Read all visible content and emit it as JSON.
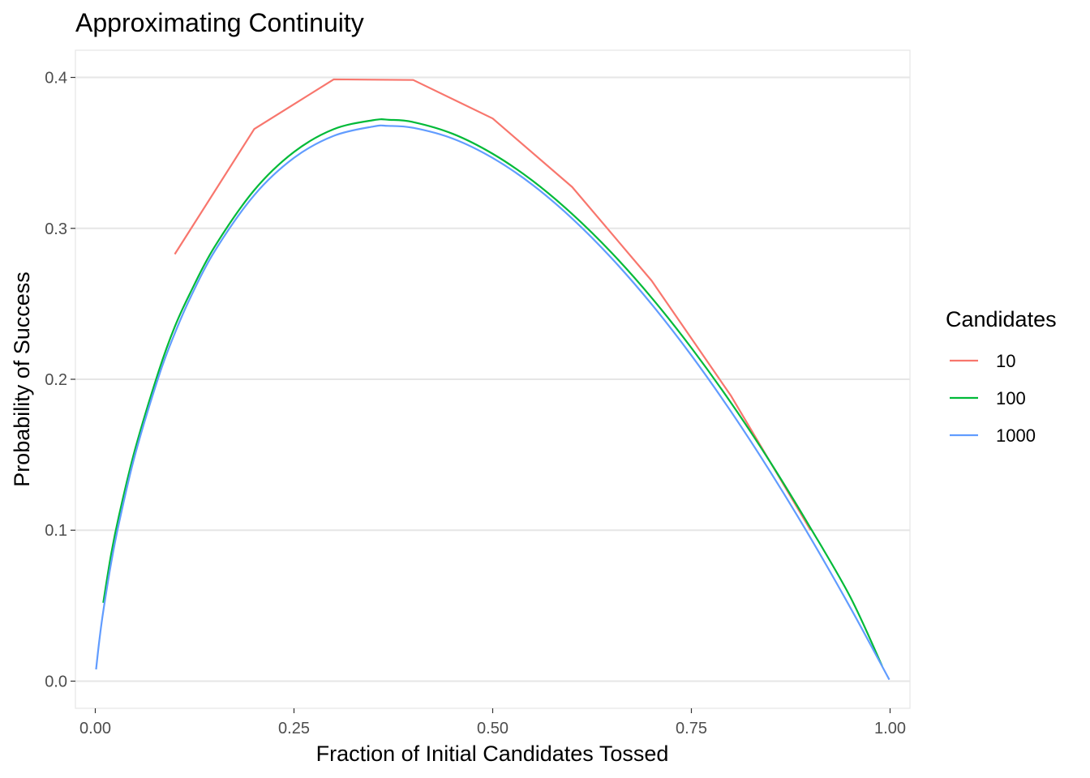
{
  "chart_data": {
    "type": "line",
    "title": "Approximating Continuity",
    "xlabel": "Fraction of Initial Candidates Tossed",
    "ylabel": "Probability of Success",
    "xlim": [
      -0.025,
      1.025
    ],
    "ylim": [
      -0.018,
      0.418
    ],
    "x_ticks": [
      0.0,
      0.25,
      0.5,
      0.75,
      1.0
    ],
    "x_tick_labels": [
      "0.00",
      "0.25",
      "0.50",
      "0.75",
      "1.00"
    ],
    "y_ticks": [
      0.0,
      0.1,
      0.2,
      0.3,
      0.4
    ],
    "y_tick_labels": [
      "0.0",
      "0.1",
      "0.2",
      "0.3",
      "0.4"
    ],
    "grid": true,
    "legend": {
      "title": "Candidates",
      "placement": "right"
    },
    "series": [
      {
        "name": "10",
        "color": "#F8766D",
        "x": [
          0.1,
          0.2,
          0.3,
          0.4,
          0.5,
          0.6,
          0.7,
          0.8,
          0.9
        ],
        "y": [
          0.2829,
          0.3658,
          0.3987,
          0.3983,
          0.3728,
          0.3274,
          0.2653,
          0.1889,
          0.1
        ]
      },
      {
        "name": "100",
        "color": "#00BA38",
        "x": [
          0.01,
          0.02,
          0.03,
          0.05,
          0.08,
          0.1,
          0.12,
          0.15,
          0.2,
          0.25,
          0.3,
          0.35,
          0.37,
          0.4,
          0.45,
          0.5,
          0.55,
          0.6,
          0.65,
          0.7,
          0.75,
          0.8,
          0.85,
          0.9,
          0.95,
          0.99
        ],
        "y": [
          0.0519,
          0.0843,
          0.1101,
          0.1535,
          0.2057,
          0.2348,
          0.2578,
          0.2877,
          0.3253,
          0.3506,
          0.3657,
          0.3717,
          0.3719,
          0.3704,
          0.3626,
          0.3494,
          0.3316,
          0.3095,
          0.2836,
          0.254,
          0.2208,
          0.1843,
          0.1445,
          0.1014,
          0.0557,
          0.01
        ]
      },
      {
        "name": "1000",
        "color": "#619CFF",
        "x": [
          0.001,
          0.005,
          0.01,
          0.02,
          0.03,
          0.05,
          0.08,
          0.1,
          0.12,
          0.15,
          0.2,
          0.25,
          0.3,
          0.35,
          0.368,
          0.4,
          0.45,
          0.5,
          0.55,
          0.6,
          0.65,
          0.7,
          0.75,
          0.8,
          0.85,
          0.9,
          0.95,
          0.999
        ],
        "y": [
          0.0078,
          0.0266,
          0.0462,
          0.0785,
          0.1052,
          0.1499,
          0.2022,
          0.2304,
          0.2545,
          0.2847,
          0.322,
          0.3467,
          0.3613,
          0.3675,
          0.3679,
          0.3666,
          0.3594,
          0.3466,
          0.3289,
          0.3065,
          0.28,
          0.2497,
          0.2158,
          0.1785,
          0.1381,
          0.0948,
          0.0487,
          0.001
        ]
      }
    ]
  }
}
